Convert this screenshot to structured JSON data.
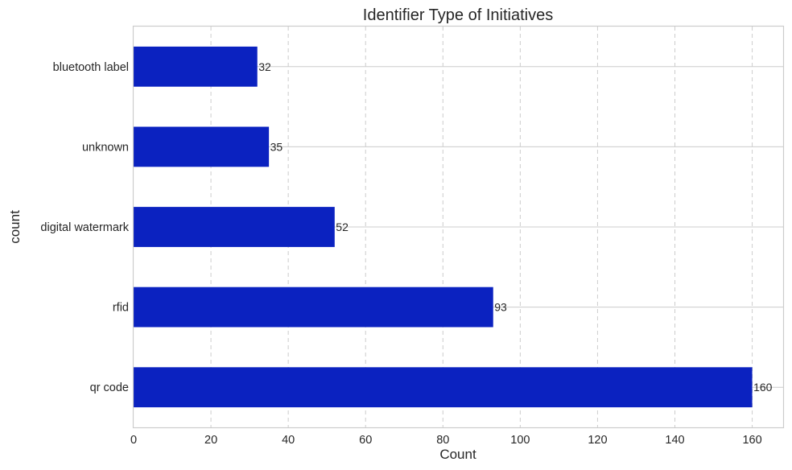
{
  "chart_data": {
    "type": "bar",
    "orientation": "horizontal",
    "title": "Identifier Type of Initiatives",
    "xlabel": "Count",
    "ylabel": "count",
    "categories": [
      "bluetooth label",
      "unknown",
      "digital watermark",
      "rfid",
      "qr code"
    ],
    "values": [
      32,
      35,
      52,
      93,
      160
    ],
    "xlim": [
      0,
      168
    ],
    "xticks": [
      0,
      20,
      40,
      60,
      80,
      100,
      120,
      140,
      160
    ],
    "grid": true,
    "bar_color": "#0b22c0"
  }
}
